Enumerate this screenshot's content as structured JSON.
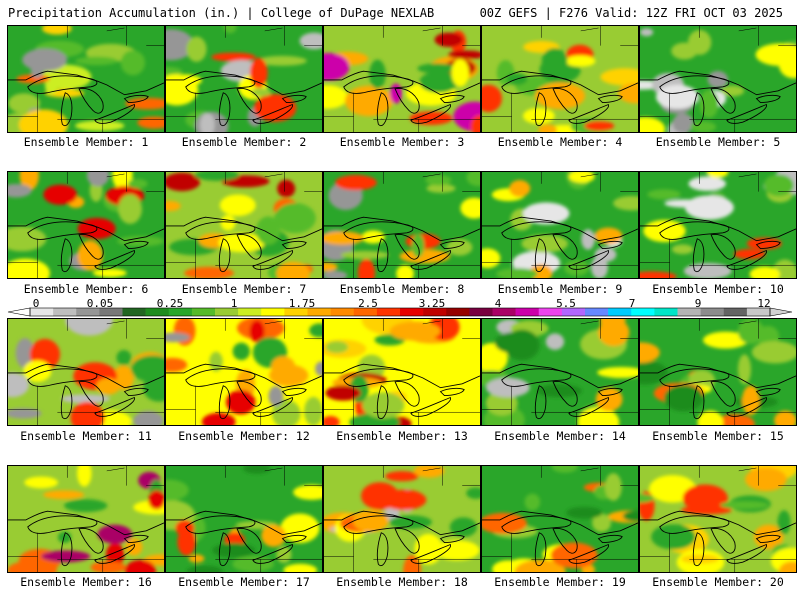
{
  "header": {
    "left": "Precipitation Accumulation (in.) | College of DuPage NEXLAB",
    "right": "00Z GEFS | F276 Valid: 12Z FRI OCT 03 2025"
  },
  "legend": {
    "labels": [
      "0",
      "0.05",
      "0.25",
      "1",
      "1.75",
      "2.5",
      "3.25",
      "4",
      "5.5",
      "7",
      "9",
      "12"
    ],
    "colors": [
      "#e6e6e6",
      "#bebebe",
      "#969696",
      "#787878",
      "#226622",
      "#1e8c1e",
      "#2aa62a",
      "#55bb2a",
      "#99cc33",
      "#ccee22",
      "#ffff00",
      "#ffd200",
      "#ffaa00",
      "#ff8a00",
      "#ff6600",
      "#ff3300",
      "#e60000",
      "#c00000",
      "#960000",
      "#780040",
      "#aa0066",
      "#cc00aa",
      "#ee44ee",
      "#b266ff",
      "#6688ff",
      "#00ccff",
      "#00ffff",
      "#00e6c8",
      "#b4b4b4",
      "#8c8c8c",
      "#646464",
      "#c8c8c8"
    ]
  },
  "panels": [
    {
      "caption": "Ensemble Member: 1",
      "base": "#2aa62a",
      "blobs": [
        "#55bb2a",
        "#99cc33",
        "#ccee22",
        "#ffd200",
        "#ff6600",
        "#969696"
      ]
    },
    {
      "caption": "Ensemble Member: 2",
      "base": "#2aa62a",
      "blobs": [
        "#55bb2a",
        "#99cc33",
        "#969696",
        "#ffff00",
        "#ff3300",
        "#bebebe"
      ]
    },
    {
      "caption": "Ensemble Member: 3",
      "base": "#99cc33",
      "blobs": [
        "#ffff00",
        "#ffaa00",
        "#ff3300",
        "#c00000",
        "#cc00aa",
        "#2aa62a"
      ]
    },
    {
      "caption": "Ensemble Member: 4",
      "base": "#99cc33",
      "blobs": [
        "#ffff00",
        "#ffd200",
        "#55bb2a",
        "#ff3300",
        "#2aa62a",
        "#ffaa00"
      ]
    },
    {
      "caption": "Ensemble Member: 5",
      "base": "#2aa62a",
      "blobs": [
        "#bebebe",
        "#e6e6e6",
        "#55bb2a",
        "#99cc33",
        "#ffff00",
        "#969696"
      ]
    },
    {
      "caption": "Ensemble Member: 6",
      "base": "#2aa62a",
      "blobs": [
        "#55bb2a",
        "#99cc33",
        "#ffff00",
        "#ffaa00",
        "#e60000",
        "#969696"
      ]
    },
    {
      "caption": "Ensemble Member: 7",
      "base": "#99cc33",
      "blobs": [
        "#ffff00",
        "#2aa62a",
        "#ffaa00",
        "#ff6600",
        "#c00000",
        "#55bb2a"
      ]
    },
    {
      "caption": "Ensemble Member: 8",
      "base": "#2aa62a",
      "blobs": [
        "#969696",
        "#99cc33",
        "#ffff00",
        "#ffaa00",
        "#ff3300",
        "#55bb2a"
      ]
    },
    {
      "caption": "Ensemble Member: 9",
      "base": "#2aa62a",
      "blobs": [
        "#bebebe",
        "#e6e6e6",
        "#55bb2a",
        "#99cc33",
        "#ffff00",
        "#ffaa00"
      ]
    },
    {
      "caption": "Ensemble Member: 10",
      "base": "#2aa62a",
      "blobs": [
        "#e6e6e6",
        "#bebebe",
        "#99cc33",
        "#ffff00",
        "#ff3300",
        "#55bb2a"
      ]
    },
    {
      "caption": "Ensemble Member: 11",
      "base": "#99cc33",
      "blobs": [
        "#969696",
        "#bebebe",
        "#ffff00",
        "#ffaa00",
        "#ff3300",
        "#2aa62a"
      ]
    },
    {
      "caption": "Ensemble Member: 12",
      "base": "#ffff00",
      "blobs": [
        "#ffaa00",
        "#ff6600",
        "#e60000",
        "#2aa62a",
        "#99cc33",
        "#969696"
      ]
    },
    {
      "caption": "Ensemble Member: 13",
      "base": "#ffff00",
      "blobs": [
        "#ffd200",
        "#ffaa00",
        "#ff3300",
        "#2aa62a",
        "#99cc33",
        "#c00000"
      ]
    },
    {
      "caption": "Ensemble Member: 14",
      "base": "#2aa62a",
      "blobs": [
        "#55bb2a",
        "#99cc33",
        "#ffff00",
        "#bebebe",
        "#ffaa00",
        "#1e8c1e"
      ]
    },
    {
      "caption": "Ensemble Member: 15",
      "base": "#2aa62a",
      "blobs": [
        "#55bb2a",
        "#99cc33",
        "#ffff00",
        "#ffaa00",
        "#ff6600",
        "#1e8c1e"
      ]
    },
    {
      "caption": "Ensemble Member: 16",
      "base": "#99cc33",
      "blobs": [
        "#2aa62a",
        "#ffff00",
        "#ff6600",
        "#e60000",
        "#aa0066",
        "#ffaa00"
      ]
    },
    {
      "caption": "Ensemble Member: 17",
      "base": "#2aa62a",
      "blobs": [
        "#55bb2a",
        "#99cc33",
        "#ffff00",
        "#ffaa00",
        "#ff3300",
        "#1e8c1e"
      ]
    },
    {
      "caption": "Ensemble Member: 18",
      "base": "#99cc33",
      "blobs": [
        "#ffff00",
        "#ffaa00",
        "#ff6600",
        "#bebebe",
        "#2aa62a",
        "#ff3300"
      ]
    },
    {
      "caption": "Ensemble Member: 19",
      "base": "#2aa62a",
      "blobs": [
        "#55bb2a",
        "#99cc33",
        "#ffff00",
        "#ffaa00",
        "#1e8c1e",
        "#ff6600"
      ]
    },
    {
      "caption": "Ensemble Member: 20",
      "base": "#99cc33",
      "blobs": [
        "#ffff00",
        "#ffd200",
        "#ffaa00",
        "#2aa62a",
        "#ff3300",
        "#55bb2a"
      ]
    }
  ]
}
